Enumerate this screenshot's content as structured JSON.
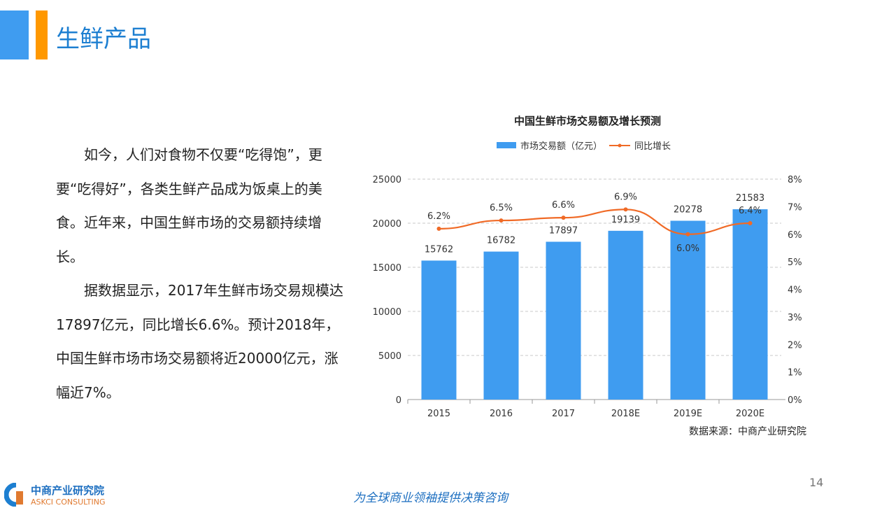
{
  "header": {
    "title": "生鲜产品"
  },
  "body": {
    "paragraphs": [
      "如今，人们对食物不仅要“吃得饱”，更要“吃得好”，各类生鲜产品成为饭桌上的美食。近年来，中国生鲜市场的交易额持续增长。",
      "据数据显示，2017年生鲜市场交易规模达17897亿元，同比增长6.6%。预计2018年，中国生鲜市场市场交易额将近20000亿元，涨幅近7%。"
    ]
  },
  "chart_data": {
    "type": "bar",
    "title": "中国生鲜市场交易额及增长预测",
    "categories": [
      "2015",
      "2016",
      "2017",
      "2018E",
      "2019E",
      "2020E"
    ],
    "series": [
      {
        "name": "市场交易额（亿元）",
        "type": "bar",
        "axis": "left",
        "values": [
          15762,
          16782,
          17897,
          19139,
          20278,
          21583
        ],
        "color": "#3f9cf0"
      },
      {
        "name": "同比增长",
        "type": "line",
        "axis": "right",
        "values": [
          6.2,
          6.5,
          6.6,
          6.9,
          6.0,
          6.4
        ],
        "labels": [
          "6.2%",
          "6.5%",
          "6.6%",
          "6.9%",
          "6.0%",
          "6.4%"
        ],
        "color": "#f06a26"
      }
    ],
    "ylim": [
      0,
      25000
    ],
    "yticks": [
      "0",
      "5000",
      "10000",
      "15000",
      "20000",
      "25000"
    ],
    "y2lim": [
      0,
      8
    ],
    "y2ticks": [
      "0%",
      "1%",
      "2%",
      "3%",
      "4%",
      "5%",
      "6%",
      "7%",
      "8%"
    ],
    "legend": "top",
    "grid": true
  },
  "source": "数据来源：中商产业研究院",
  "page_number": "14",
  "footer": {
    "logo_cn": "中商产业研究院",
    "logo_en": "ASKCI CONSULTING",
    "slogan": "为全球商业领袖提供决策咨询"
  }
}
